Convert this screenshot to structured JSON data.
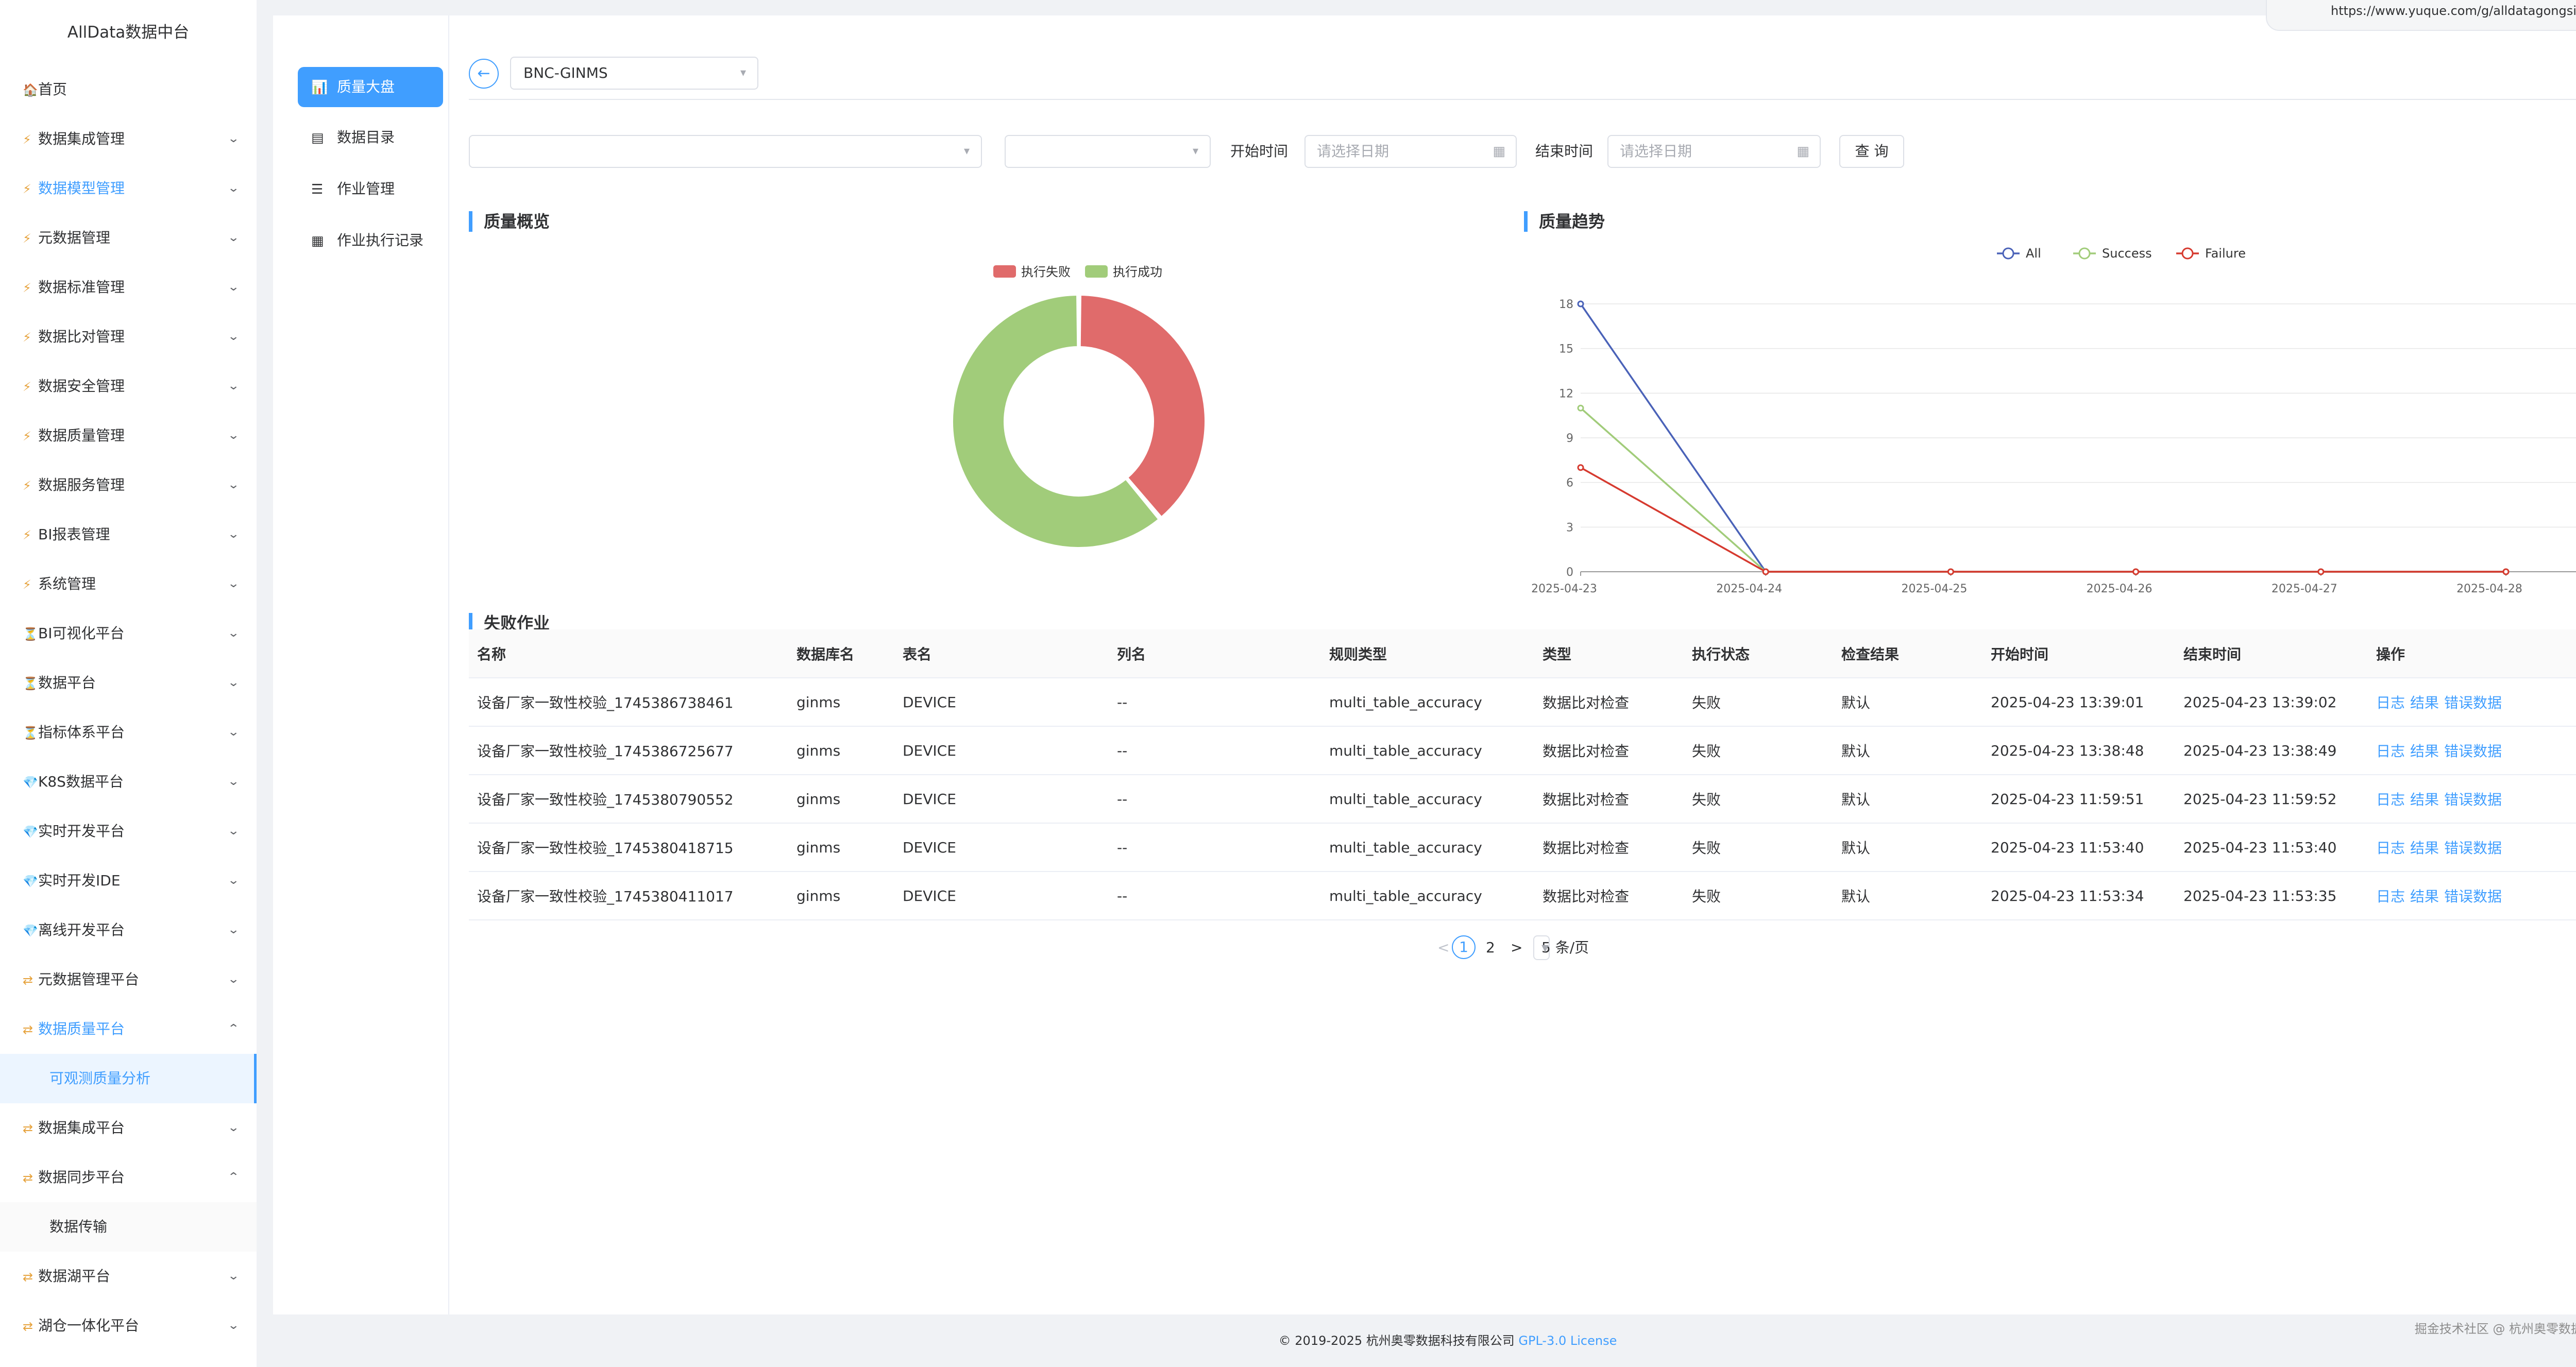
{
  "app": {
    "title": "AllData数据中台"
  },
  "sidebar": {
    "items": [
      {
        "icon": "🏠",
        "label": "首页",
        "chev": ""
      },
      {
        "icon": "⚡",
        "label": "数据集成管理",
        "chev": "v"
      },
      {
        "icon": "⚡",
        "label": "数据模型管理",
        "chev": "v"
      },
      {
        "icon": "⚡",
        "label": "元数据管理",
        "chev": "v"
      },
      {
        "icon": "⚡",
        "label": "数据标准管理",
        "chev": "v"
      },
      {
        "icon": "⚡",
        "label": "数据比对管理",
        "chev": "v"
      },
      {
        "icon": "⚡",
        "label": "数据安全管理",
        "chev": "v"
      },
      {
        "icon": "⚡",
        "label": "数据质量管理",
        "chev": "v"
      },
      {
        "icon": "⚡",
        "label": "数据服务管理",
        "chev": "v"
      },
      {
        "icon": "⚡",
        "label": "BI报表管理",
        "chev": "v"
      },
      {
        "icon": "⚡",
        "label": "系统管理",
        "chev": "v"
      },
      {
        "icon": "⏳",
        "label": "BI可视化平台",
        "chev": "v"
      },
      {
        "icon": "⏳",
        "label": "数据平台",
        "chev": "v"
      },
      {
        "icon": "⏳",
        "label": "指标体系平台",
        "chev": "v"
      },
      {
        "icon": "💎",
        "label": "K8S数据平台",
        "chev": "v"
      },
      {
        "icon": "💎",
        "label": "实时开发平台",
        "chev": "v"
      },
      {
        "icon": "💎",
        "label": "实时开发IDE",
        "chev": "v"
      },
      {
        "icon": "💎",
        "label": "离线开发平台",
        "chev": "v"
      },
      {
        "icon": "⇄",
        "label": "元数据管理平台",
        "chev": "v"
      },
      {
        "icon": "⇄",
        "label": "数据质量平台",
        "chev": "^"
      },
      {
        "sub": "可观测质量分析"
      },
      {
        "icon": "⇄",
        "label": "数据集成平台",
        "chev": "v"
      },
      {
        "icon": "⇄",
        "label": "数据同步平台",
        "chev": "^"
      },
      {
        "sub": "数据传输"
      },
      {
        "icon": "⇄",
        "label": "数据湖平台",
        "chev": "v"
      },
      {
        "icon": "⇄",
        "label": "湖仓一体化平台",
        "chev": "v"
      }
    ]
  },
  "subnav": {
    "items": [
      {
        "icon": "📊",
        "label": "质量大盘"
      },
      {
        "icon": "▤",
        "label": "数据目录"
      },
      {
        "icon": "☰",
        "label": "作业管理"
      },
      {
        "icon": "▦",
        "label": "作业执行记录"
      }
    ]
  },
  "header": {
    "datasource": "BNC-GINMS",
    "back_icon": "←"
  },
  "filters": {
    "start_label": "开始时间",
    "end_label": "结束时间",
    "start_placeholder": "请选择日期",
    "end_placeholder": "请选择日期",
    "query_label": "查 询"
  },
  "overview": {
    "title": "质量概览"
  },
  "trend": {
    "title": "质量趋势"
  },
  "failed": {
    "title": "失败作业"
  },
  "colors": {
    "accent": "#409eff",
    "fail": "#e06b6b",
    "success": "#a1cc7a",
    "all": "#4a62b8",
    "failure_line": "#d63a2f"
  },
  "chart_data": [
    {
      "type": "pie",
      "title": "质量概览",
      "legend": [
        "执行失败",
        "执行成功"
      ],
      "slices": [
        {
          "name": "执行失败",
          "value": 7
        },
        {
          "name": "执行成功",
          "value": 11
        }
      ]
    },
    {
      "type": "line",
      "title": "质量趋势",
      "x": [
        "2025-04-23",
        "2025-04-24",
        "2025-04-25",
        "2025-04-26",
        "2025-04-27",
        "2025-04-28"
      ],
      "y_ticks": [
        "0",
        "3",
        "6",
        "9",
        "12",
        "15",
        "18"
      ],
      "ylim": [
        0,
        18
      ],
      "series": [
        {
          "name": "All",
          "values": [
            18,
            0,
            0,
            0,
            0,
            0
          ]
        },
        {
          "name": "Success",
          "values": [
            11,
            0,
            0,
            0,
            0,
            0
          ]
        },
        {
          "name": "Failure",
          "values": [
            7,
            0,
            0,
            0,
            0,
            0
          ]
        }
      ]
    }
  ],
  "table": {
    "columns": [
      "名称",
      "数据库名",
      "表名",
      "列名",
      "规则类型",
      "类型",
      "执行状态",
      "检查结果",
      "开始时间",
      "结束时间",
      "操作"
    ],
    "rows": [
      [
        "设备厂家一致性校验_1745386738461",
        "ginms",
        "DEVICE",
        "--",
        "multi_table_accuracy",
        "数据比对检查",
        "失败",
        "默认",
        "2025-04-23 13:39:01",
        "2025-04-23 13:39:02"
      ],
      [
        "设备厂家一致性校验_1745386725677",
        "ginms",
        "DEVICE",
        "--",
        "multi_table_accuracy",
        "数据比对检查",
        "失败",
        "默认",
        "2025-04-23 13:38:48",
        "2025-04-23 13:38:49"
      ],
      [
        "设备厂家一致性校验_1745380790552",
        "ginms",
        "DEVICE",
        "--",
        "multi_table_accuracy",
        "数据比对检查",
        "失败",
        "默认",
        "2025-04-23 11:59:51",
        "2025-04-23 11:59:52"
      ],
      [
        "设备厂家一致性校验_1745380418715",
        "ginms",
        "DEVICE",
        "--",
        "multi_table_accuracy",
        "数据比对检查",
        "失败",
        "默认",
        "2025-04-23 11:53:40",
        "2025-04-23 11:53:40"
      ],
      [
        "设备厂家一致性校验_1745380411017",
        "ginms",
        "DEVICE",
        "--",
        "multi_table_accuracy",
        "数据比对检查",
        "失败",
        "默认",
        "2025-04-23 11:53:34",
        "2025-04-23 11:53:35"
      ]
    ],
    "ops": [
      "日志",
      "结果",
      "错误数据"
    ]
  },
  "pagination": {
    "prev": "<",
    "current": "1",
    "page2": "2",
    "next": ">",
    "page_size": "5 条/页"
  },
  "footer": {
    "copyright": "© 2019-2025 杭州奥零数据科技有限公司",
    "license": "GPL-3.0 License"
  },
  "watermark": "掘金技术社区 @ 杭州奥零数据科技",
  "url_popup": "https://www.yuque.com/g/alldatagongsifu..."
}
